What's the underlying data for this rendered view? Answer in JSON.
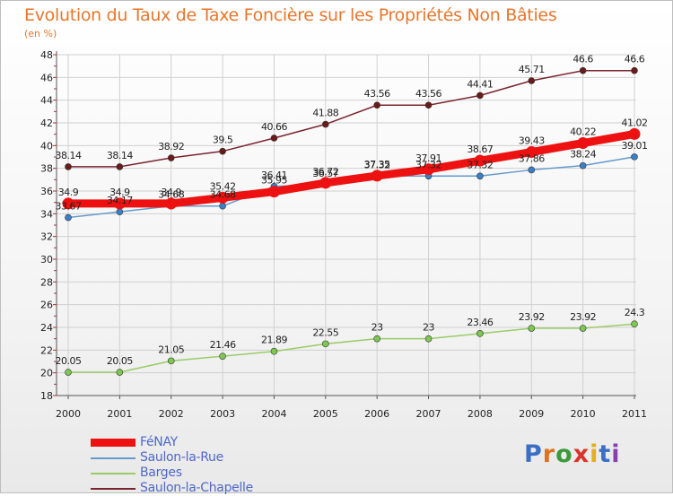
{
  "header": {
    "title": "Evolution du Taux de Taxe Foncière sur les Propriétés Non Bâties",
    "subtitle": "(en %)"
  },
  "logo": {
    "text": "Proxiti",
    "letter_colors": [
      "#3c6fc4",
      "#e0731f",
      "#3c9a3a",
      "#d9342a",
      "#e0b020",
      "#3c6fc4",
      "#8a3fb0"
    ]
  },
  "chart_data": {
    "type": "line",
    "x": [
      "2000",
      "2001",
      "2002",
      "2003",
      "2004",
      "2005",
      "2006",
      "2007",
      "2008",
      "2009",
      "2010",
      "2011"
    ],
    "ylim": [
      18,
      48
    ],
    "yticks": [
      18,
      20,
      22,
      24,
      26,
      28,
      30,
      32,
      34,
      36,
      38,
      40,
      42,
      44,
      46,
      48
    ],
    "grid": true,
    "legend_position": "bottom-left",
    "series": [
      {
        "name": "Saulon-la-Chapelle",
        "color": "#7a2530",
        "marker": "#6b1a1a",
        "values": [
          38.14,
          38.14,
          38.92,
          39.5,
          40.66,
          41.88,
          43.56,
          43.56,
          44.41,
          45.71,
          46.6,
          46.6
        ],
        "labels": [
          "38.14",
          "38.14",
          "38.92",
          "39.5",
          "40.66",
          "41.88",
          "43.56",
          "43.56",
          "44.41",
          "45.71",
          "46.6",
          "46.6"
        ]
      },
      {
        "name": "Saulon-la-Rue",
        "color": "#6699cc",
        "marker": "#3a80c8",
        "values": [
          33.67,
          34.17,
          34.68,
          34.68,
          36.41,
          36.57,
          37.32,
          37.32,
          37.32,
          37.86,
          38.24,
          39.01
        ],
        "labels": [
          "33.67",
          "34.17",
          "34.68",
          "34.68",
          "36.41",
          "36.57",
          "37.32",
          "37.32",
          "37.32",
          "37.86",
          "38.24",
          "39.01"
        ]
      },
      {
        "name": "FéNAY",
        "color": "#ee1111",
        "marker": "#ee1111",
        "values": [
          34.9,
          34.9,
          34.9,
          35.42,
          35.95,
          36.72,
          37.35,
          37.91,
          38.67,
          39.43,
          40.22,
          41.02
        ],
        "labels": [
          "34.9",
          "34.9",
          "34.9",
          "35.42",
          "35.95",
          "36.72",
          "37.35",
          "37.91",
          "38.67",
          "39.43",
          "40.22",
          "41.02"
        ]
      },
      {
        "name": "Barges",
        "color": "#99cc66",
        "marker": "#7ec850",
        "values": [
          20.05,
          20.05,
          21.05,
          21.46,
          21.89,
          22.55,
          23,
          23,
          23.46,
          23.92,
          23.92,
          24.3
        ],
        "labels": [
          "20.05",
          "20.05",
          "21.05",
          "21.46",
          "21.89",
          "22.55",
          "23",
          "23",
          "23.46",
          "23.92",
          "23.92",
          "24.3"
        ]
      }
    ],
    "legend": [
      {
        "name": "FéNAY",
        "color": "#ee1111",
        "weight": 9
      },
      {
        "name": "Saulon-la-Rue",
        "color": "#6699cc",
        "weight": 2
      },
      {
        "name": "Barges",
        "color": "#99cc66",
        "weight": 2
      },
      {
        "name": "Saulon-la-Chapelle",
        "color": "#7a2530",
        "weight": 2
      }
    ]
  }
}
